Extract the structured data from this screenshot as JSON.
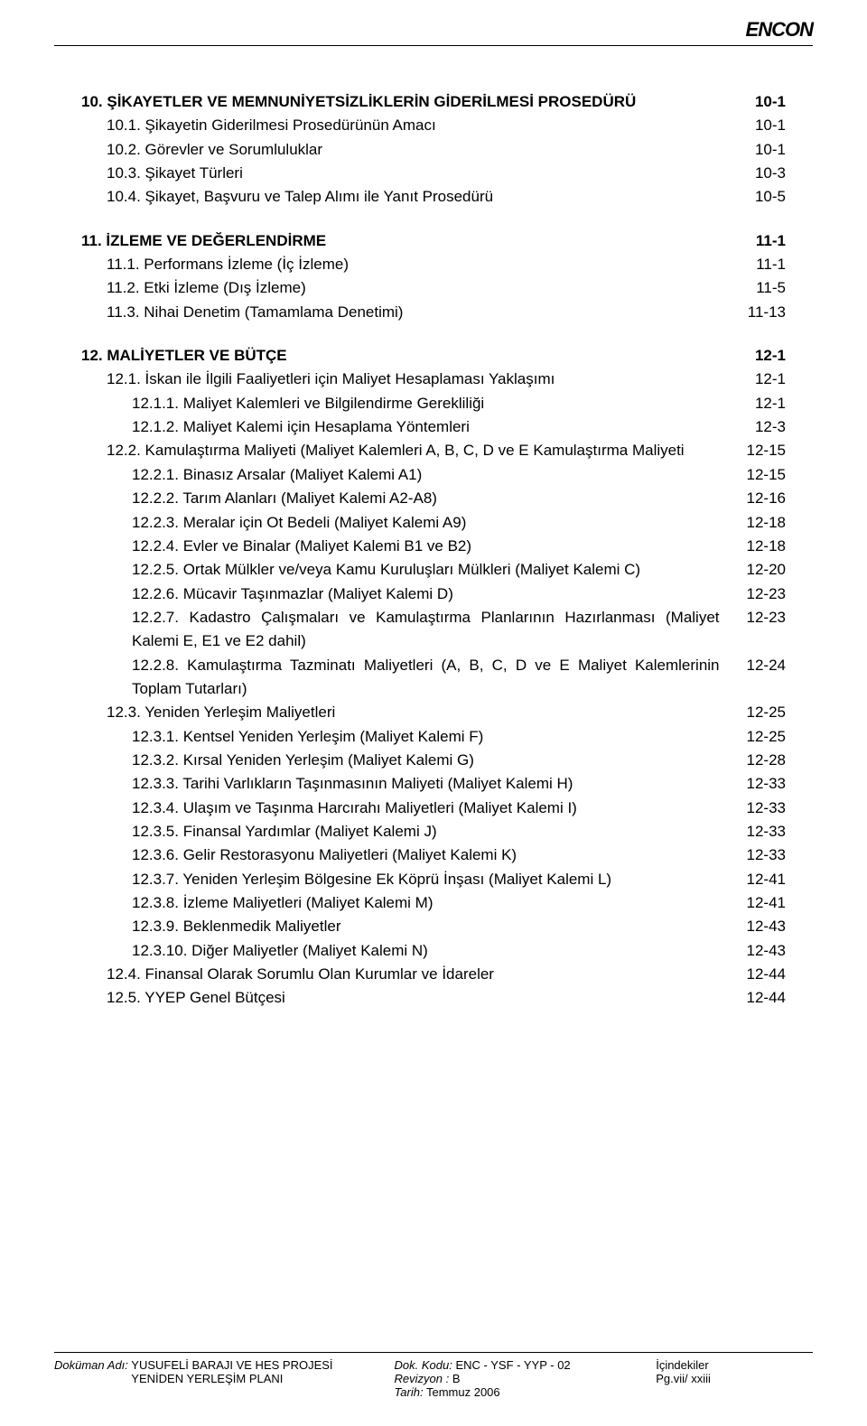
{
  "brand": "ENCON",
  "toc": [
    {
      "type": "row",
      "level": 0,
      "bold": true,
      "title": "10. ŞİKAYETLER VE MEMNUNİYETSİZLİKLERİN GİDERİLMESİ PROSEDÜRÜ",
      "page": "10-1"
    },
    {
      "type": "row",
      "level": 1,
      "bold": false,
      "title": "10.1. Şikayetin Giderilmesi Prosedürünün Amacı",
      "page": "10-1"
    },
    {
      "type": "row",
      "level": 1,
      "bold": false,
      "title": "10.2. Görevler ve Sorumluluklar",
      "page": "10-1"
    },
    {
      "type": "row",
      "level": 1,
      "bold": false,
      "title": "10.3. Şikayet Türleri",
      "page": "10-3"
    },
    {
      "type": "row",
      "level": 1,
      "bold": false,
      "title": "10.4. Şikayet, Başvuru ve Talep Alımı ile Yanıt Prosedürü",
      "page": "10-5"
    },
    {
      "type": "gap"
    },
    {
      "type": "row",
      "level": 0,
      "bold": true,
      "title": "11. İZLEME VE DEĞERLENDİRME",
      "page": "11-1"
    },
    {
      "type": "row",
      "level": 1,
      "bold": false,
      "title": "11.1. Performans İzleme (İç İzleme)",
      "page": "11-1"
    },
    {
      "type": "row",
      "level": 1,
      "bold": false,
      "title": "11.2. Etki İzleme (Dış İzleme)",
      "page": "11-5"
    },
    {
      "type": "row",
      "level": 1,
      "bold": false,
      "title": "11.3. Nihai Denetim (Tamamlama Denetimi)",
      "page": "11-13"
    },
    {
      "type": "gap"
    },
    {
      "type": "row",
      "level": 0,
      "bold": true,
      "title": "12. MALİYETLER VE BÜTÇE",
      "page": "12-1"
    },
    {
      "type": "row",
      "level": 1,
      "bold": false,
      "title": "12.1. İskan ile İlgili Faaliyetleri için Maliyet Hesaplaması Yaklaşımı",
      "page": "12-1"
    },
    {
      "type": "row",
      "level": 2,
      "bold": false,
      "title": "12.1.1. Maliyet Kalemleri ve Bilgilendirme Gerekliliği",
      "page": "12-1"
    },
    {
      "type": "row",
      "level": 2,
      "bold": false,
      "title": "12.1.2. Maliyet Kalemi için Hesaplama Yöntemleri",
      "page": "12-3"
    },
    {
      "type": "row",
      "level": 1,
      "bold": false,
      "title": "12.2. Kamulaştırma Maliyeti (Maliyet Kalemleri A, B, C, D ve E Kamulaştırma Maliyeti",
      "page": "12-15"
    },
    {
      "type": "row",
      "level": 2,
      "bold": false,
      "title": "12.2.1. Binasız Arsalar (Maliyet Kalemi A1)",
      "page": "12-15"
    },
    {
      "type": "row",
      "level": 2,
      "bold": false,
      "title": "12.2.2. Tarım Alanları (Maliyet Kalemi A2-A8)",
      "page": "12-16"
    },
    {
      "type": "row",
      "level": 2,
      "bold": false,
      "title": "12.2.3. Meralar için Ot Bedeli (Maliyet Kalemi A9)",
      "page": "12-18"
    },
    {
      "type": "row",
      "level": 2,
      "bold": false,
      "title": "12.2.4. Evler ve Binalar (Maliyet Kalemi B1 ve B2)",
      "page": "12-18"
    },
    {
      "type": "row",
      "level": 2,
      "bold": false,
      "title": "12.2.5. Ortak Mülkler ve/veya Kamu Kuruluşları Mülkleri (Maliyet Kalemi C)",
      "page": "12-20"
    },
    {
      "type": "row",
      "level": 2,
      "bold": false,
      "title": "12.2.6. Mücavir Taşınmazlar (Maliyet Kalemi D)",
      "page": "12-23"
    },
    {
      "type": "row",
      "level": 2,
      "bold": false,
      "title": "12.2.7. Kadastro Çalışmaları ve Kamulaştırma Planlarının Hazırlanması (Maliyet Kalemi E, E1 ve E2 dahil)",
      "page": "12-23"
    },
    {
      "type": "row",
      "level": 2,
      "bold": false,
      "title": "12.2.8. Kamulaştırma Tazminatı Maliyetleri (A, B, C, D ve E Maliyet Kalemlerinin Toplam Tutarları)",
      "page": "12-24"
    },
    {
      "type": "row",
      "level": 1,
      "bold": false,
      "title": "12.3. Yeniden Yerleşim Maliyetleri",
      "page": "12-25"
    },
    {
      "type": "row",
      "level": 2,
      "bold": false,
      "title": "12.3.1. Kentsel Yeniden Yerleşim (Maliyet Kalemi F)",
      "page": "12-25"
    },
    {
      "type": "row",
      "level": 2,
      "bold": false,
      "title": "12.3.2. Kırsal Yeniden Yerleşim (Maliyet Kalemi G)",
      "page": "12-28"
    },
    {
      "type": "row",
      "level": 2,
      "bold": false,
      "title": "12.3.3. Tarihi Varlıkların Taşınmasının Maliyeti (Maliyet Kalemi H)",
      "page": "12-33"
    },
    {
      "type": "row",
      "level": 2,
      "bold": false,
      "title": "12.3.4. Ulaşım ve Taşınma Harcırahı Maliyetleri (Maliyet Kalemi I)",
      "page": "12-33"
    },
    {
      "type": "row",
      "level": 2,
      "bold": false,
      "title": "12.3.5. Finansal Yardımlar (Maliyet Kalemi J)",
      "page": "12-33"
    },
    {
      "type": "row",
      "level": 2,
      "bold": false,
      "title": "12.3.6. Gelir Restorasyonu Maliyetleri (Maliyet Kalemi K)",
      "page": "12-33"
    },
    {
      "type": "row",
      "level": 2,
      "bold": false,
      "title": "12.3.7. Yeniden Yerleşim Bölgesine Ek Köprü İnşası (Maliyet Kalemi L)",
      "page": "12-41"
    },
    {
      "type": "row",
      "level": 2,
      "bold": false,
      "title": "12.3.8. İzleme Maliyetleri (Maliyet Kalemi M)",
      "page": "12-41"
    },
    {
      "type": "row",
      "level": 2,
      "bold": false,
      "title": "12.3.9. Beklenmedik Maliyetler",
      "page": "12-43"
    },
    {
      "type": "row",
      "level": 2,
      "bold": false,
      "title": "12.3.10. Diğer Maliyetler (Maliyet Kalemi N)",
      "page": "12-43"
    },
    {
      "type": "row",
      "level": 1,
      "bold": false,
      "title": "12.4. Finansal Olarak Sorumlu Olan Kurumlar ve İdareler",
      "page": "12-44"
    },
    {
      "type": "row",
      "level": 1,
      "bold": false,
      "title": "12.5. YYEP Genel Bütçesi",
      "page": "12-44"
    }
  ],
  "footer": {
    "doc_name_label": "Doküman Adı:",
    "doc_name_line1": "YUSUFELİ BARAJI VE HES PROJESİ",
    "doc_name_line2": "YENİDEN YERLEŞİM PLANI",
    "doc_code_label": "Dok. Kodu:",
    "doc_code": "ENC - YSF - YYP - 02",
    "rev_label": "Revizyon :",
    "rev": "B",
    "date_label": "Tarih:",
    "date": "Temmuz 2006",
    "section": "İçindekiler",
    "page_num": "Pg.vii/ xxiii"
  }
}
